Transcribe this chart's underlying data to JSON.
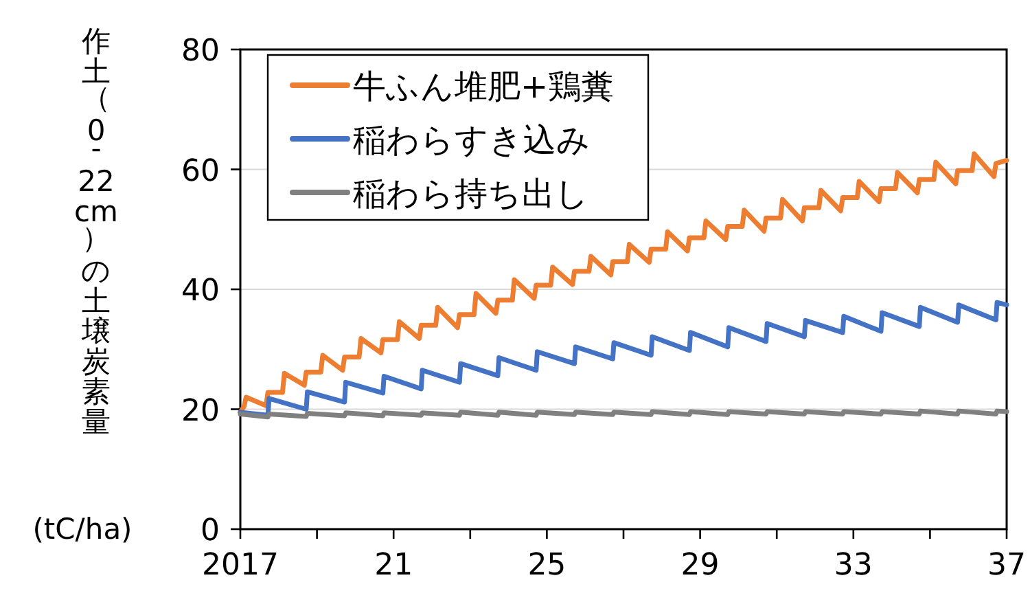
{
  "chart_data": {
    "type": "line",
    "ylabel": "作土（0-22cm）の土壌炭素量",
    "annotations": [
      "(tC/ha)"
    ],
    "xlim": [
      2017,
      2037
    ],
    "xticks": [
      2017,
      {
        "value": 2019,
        "label": null
      },
      {
        "value": 2021,
        "label": "21"
      },
      {
        "value": 2023,
        "label": null
      },
      {
        "value": 2025,
        "label": "25"
      },
      {
        "value": 2027,
        "label": null
      },
      {
        "value": 2029,
        "label": "29"
      },
      {
        "value": 2031,
        "label": null
      },
      {
        "value": 2033,
        "label": "33"
      },
      {
        "value": 2035,
        "label": null
      },
      {
        "value": 2037,
        "label": "37"
      }
    ],
    "ylim": [
      0,
      80
    ],
    "yticks": [
      0,
      20,
      40,
      60,
      80
    ],
    "grid": "y",
    "legend": "top left",
    "marker": "none",
    "line_style": "solid",
    "series": [
      {
        "name": "牛ふん堆肥+鶏糞",
        "color": "#ed7d31",
        "x": [
          2017,
          2017.1,
          2017.15,
          2017.67,
          2017.72,
          2018.1,
          2018.15,
          2018.67,
          2018.72,
          2019.1,
          2019.15,
          2019.67,
          2019.72,
          2020.1,
          2020.15,
          2020.67,
          2020.72,
          2021.1,
          2021.15,
          2021.67,
          2021.72,
          2022.1,
          2022.15,
          2022.67,
          2022.72,
          2023.1,
          2023.15,
          2023.67,
          2023.72,
          2024.1,
          2024.15,
          2024.67,
          2024.72,
          2025.1,
          2025.15,
          2025.67,
          2025.72,
          2026.1,
          2026.15,
          2026.67,
          2026.72,
          2027.1,
          2027.15,
          2027.67,
          2027.72,
          2028.1,
          2028.15,
          2028.67,
          2028.72,
          2029.1,
          2029.15,
          2029.67,
          2029.72,
          2030.1,
          2030.15,
          2030.67,
          2030.72,
          2031.1,
          2031.15,
          2031.67,
          2031.72,
          2032.1,
          2032.15,
          2032.67,
          2032.72,
          2033.1,
          2033.15,
          2033.67,
          2033.72,
          2034.1,
          2034.15,
          2034.67,
          2034.72,
          2035.1,
          2035.15,
          2035.67,
          2035.72,
          2036.1,
          2036.15,
          2036.67,
          2036.72,
          2037
        ],
        "values": [
          19.5,
          20.5,
          22,
          20.6,
          22.8,
          22.8,
          26,
          24,
          26.2,
          26.2,
          29,
          26.5,
          28.7,
          28.7,
          31.8,
          29.4,
          31.6,
          31.6,
          34.6,
          31.8,
          34,
          34,
          37,
          33.6,
          35.8,
          35.8,
          39.3,
          36,
          38.2,
          38.2,
          41.6,
          38.5,
          40.7,
          40.7,
          43.7,
          40.8,
          43,
          43,
          45.5,
          42.4,
          44.6,
          44.6,
          47.5,
          44.5,
          46.7,
          46.7,
          49.6,
          46.4,
          48.6,
          48.6,
          51.4,
          48.3,
          50.5,
          50.5,
          53.2,
          49.7,
          51.9,
          51.9,
          55,
          51.4,
          53.6,
          53.6,
          56.5,
          53.1,
          55.3,
          55.3,
          58,
          54.6,
          56.8,
          56.8,
          59.5,
          56.1,
          58.3,
          58.3,
          61.2,
          57.6,
          59.8,
          59.8,
          62.6,
          58.8,
          61,
          61.5
        ]
      },
      {
        "name": "稲わらすき込み",
        "color": "#4472c4",
        "x": [
          2017,
          2017.72,
          2017.75,
          2018.72,
          2018.75,
          2019.72,
          2019.75,
          2020.72,
          2020.75,
          2021.72,
          2021.75,
          2022.72,
          2022.75,
          2023.72,
          2023.75,
          2024.72,
          2024.75,
          2025.72,
          2025.75,
          2026.72,
          2026.75,
          2027.72,
          2027.75,
          2028.72,
          2028.75,
          2029.72,
          2029.75,
          2030.72,
          2030.75,
          2031.72,
          2031.75,
          2032.72,
          2032.75,
          2033.72,
          2033.75,
          2034.72,
          2034.75,
          2035.72,
          2035.75,
          2036.72,
          2036.75,
          2037
        ],
        "values": [
          19.5,
          19.0,
          21.8,
          20,
          22.9,
          21.2,
          24.5,
          22.7,
          25.5,
          23.4,
          26.5,
          24.5,
          27.6,
          25.6,
          28.6,
          26.5,
          29.6,
          27.6,
          30.4,
          28.4,
          31.1,
          29,
          32.1,
          29.8,
          32.8,
          30.4,
          33.6,
          31.3,
          34.3,
          32.1,
          34.8,
          32.8,
          35.5,
          33,
          36.1,
          33.8,
          37,
          34.5,
          37.4,
          34.9,
          37.8,
          37.4
        ]
      },
      {
        "name": "稲わら持ち出し",
        "color": "#808080",
        "x": [
          2017,
          2017.72,
          2017.75,
          2018.72,
          2018.75,
          2019.72,
          2019.75,
          2020.72,
          2020.75,
          2021.72,
          2021.75,
          2022.72,
          2022.75,
          2023.72,
          2023.75,
          2024.72,
          2024.75,
          2025.72,
          2025.75,
          2026.72,
          2026.75,
          2027.72,
          2027.75,
          2028.72,
          2028.75,
          2029.72,
          2029.75,
          2030.72,
          2030.75,
          2031.72,
          2031.75,
          2032.72,
          2032.75,
          2033.72,
          2033.75,
          2034.72,
          2034.75,
          2035.72,
          2035.75,
          2036.72,
          2036.75,
          2037
        ],
        "values": [
          19.2,
          18.7,
          19.2,
          18.8,
          19.3,
          18.9,
          19.4,
          18.9,
          19.4,
          19.0,
          19.4,
          19.0,
          19.5,
          19.0,
          19.5,
          19.0,
          19.5,
          19.1,
          19.5,
          19.1,
          19.5,
          19.1,
          19.6,
          19.1,
          19.6,
          19.1,
          19.6,
          19.2,
          19.6,
          19.2,
          19.6,
          19.2,
          19.6,
          19.2,
          19.6,
          19.2,
          19.7,
          19.2,
          19.7,
          19.2,
          19.7,
          19.6
        ]
      }
    ]
  }
}
